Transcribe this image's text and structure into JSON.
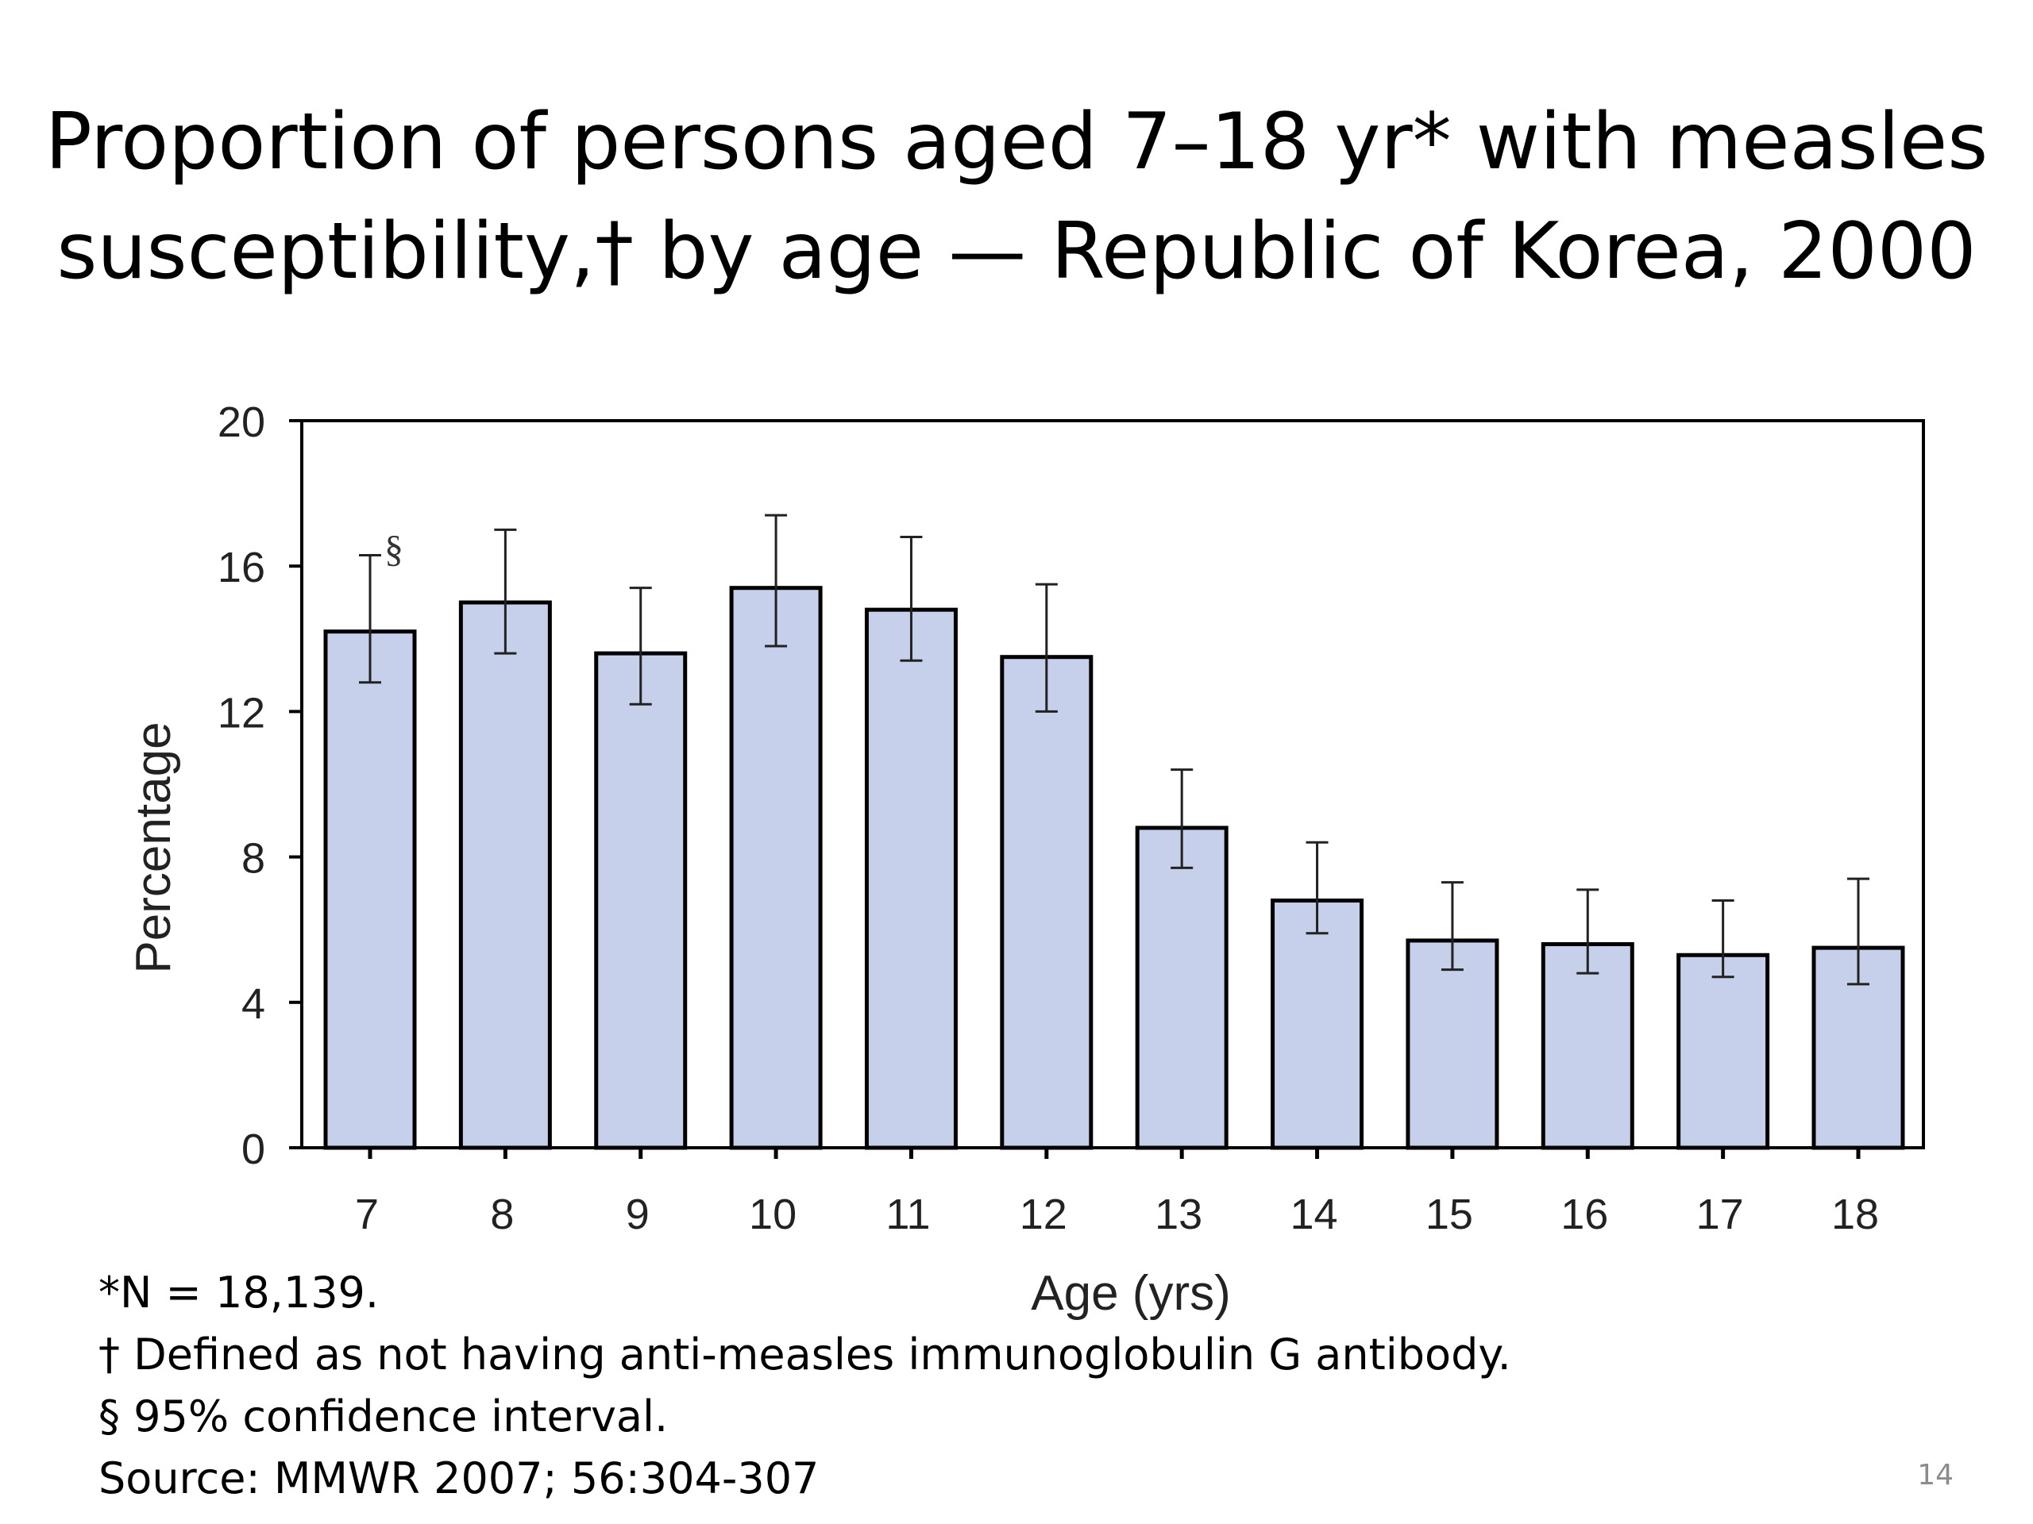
{
  "slide": {
    "title_line1": "Proportion of persons aged 7–18 yr* with measles",
    "title_line2": "susceptibility,† by age — Republic of Korea, 2000",
    "footnotes": [
      "*N = 18,139.",
      "† Defined as not having anti-measles immunoglobulin G antibody.",
      "§ 95% confidence interval.",
      "Source: MMWR 2007; 56:304-307"
    ],
    "page_number": "14"
  },
  "chart_data": {
    "type": "bar",
    "title": "",
    "xlabel": "Age (yrs)",
    "ylabel": "Percentage",
    "categories": [
      "7",
      "8",
      "9",
      "10",
      "11",
      "12",
      "13",
      "14",
      "15",
      "16",
      "17",
      "18"
    ],
    "values": [
      14.2,
      15.0,
      13.6,
      15.4,
      14.8,
      13.5,
      8.8,
      6.8,
      5.7,
      5.6,
      5.3,
      5.5
    ],
    "ci_lower": [
      12.8,
      13.6,
      12.2,
      13.8,
      13.4,
      12.0,
      7.7,
      5.9,
      4.9,
      4.8,
      4.7,
      4.5
    ],
    "ci_upper": [
      16.3,
      17.0,
      15.4,
      17.4,
      16.8,
      15.5,
      10.4,
      8.4,
      7.3,
      7.1,
      6.8,
      7.4
    ],
    "error_bar_marker": "§",
    "ylim": [
      0,
      20
    ],
    "yticks": [
      0,
      4,
      8,
      12,
      16,
      20
    ],
    "grid": false,
    "bar_color": "#c6d0ea",
    "bar_edge_color": "#000000"
  }
}
